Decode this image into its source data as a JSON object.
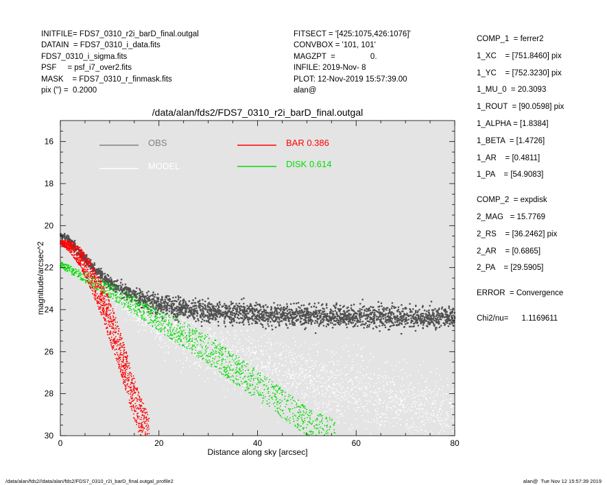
{
  "header_left": [
    "INITFILE= FDS7_0310_r2i_barD_final.outgal",
    "DATAIN  = FDS7_0310_i_data.fits",
    "FDS7_0310_i_sigma.fits",
    "PSF     = psf_i7_over2.fits",
    "MASK    = FDS7_0310_r_finmask.fits",
    "pix (\") =  0.2000"
  ],
  "header_mid": [
    "FITSECT = '[425:1075,426:1076]'",
    "CONVBOX = '101, 101'",
    "MAGZPT  =                0.",
    "INFILE: 2019-Nov- 8",
    "PLOT: 12-Nov-2019 15:57:39.00",
    "alan@"
  ],
  "params": {
    "comp1": [
      "COMP_1  = ferrer2",
      "1_XC    = [751.8460] pix",
      "1_YC    = [752.3230] pix",
      "1_MU_0  = 20.3093",
      "1_ROUT  = [90.0598] pix",
      "1_ALPHA = [1.8384]",
      "1_BETA  = [1.4726]",
      "1_AR    = [0.4811]",
      "1_PA    = [54.9083]"
    ],
    "comp2": [
      "COMP_2  = expdisk",
      "2_MAG   = 15.7769",
      "2_RS    = [36.2462] pix",
      "2_AR    = [0.6865]",
      "2_PA    = [29.5905]"
    ],
    "error": "ERROR  = Convergence",
    "chi2": "Chi2/nu=      1.1169611"
  },
  "footer_left": "/data/alan/fds2//data/alan/fds2/FDS7_0310_r2i_barD_final.outgal_profile2",
  "footer_right": "alan@  Tue Nov 12 15:57:39 2019",
  "chart_data": {
    "type": "scatter",
    "title": "/data/alan/fds2/FDS7_0310_r2i_barD_final.outgal",
    "xlabel": "Distance along sky [arcsec]",
    "ylabel": "magnitude/arcsec^2",
    "xlim": [
      0,
      80
    ],
    "ylim": [
      30,
      15
    ],
    "y_inverted": true,
    "xticks": [
      0,
      20,
      40,
      60,
      80
    ],
    "yticks": [
      16,
      18,
      20,
      22,
      24,
      26,
      28,
      30
    ],
    "background": "#e4e4e4",
    "legend": [
      {
        "label": "OBS",
        "color": "#808080",
        "placement": "top-left"
      },
      {
        "label": "MODEL",
        "color": "#ffffff",
        "placement": "top-left"
      },
      {
        "label": "BAR  0.386",
        "color": "#ff0000",
        "placement": "top-center"
      },
      {
        "label": "DISK  0.614",
        "color": "#00dd00",
        "placement": "top-center"
      }
    ],
    "series": [
      {
        "name": "OBS",
        "color": "#505050",
        "x": [
          0,
          1,
          2,
          3,
          4,
          5,
          6,
          8,
          10,
          12,
          14,
          16,
          18,
          20,
          22,
          25,
          30,
          40,
          50,
          60,
          70,
          80
        ],
        "y": [
          20.5,
          20.55,
          20.75,
          21.0,
          21.3,
          21.6,
          21.9,
          22.3,
          22.7,
          23.0,
          23.25,
          23.45,
          23.6,
          23.75,
          23.85,
          24.0,
          24.1,
          24.25,
          24.3,
          24.35,
          24.35,
          24.4
        ]
      },
      {
        "name": "MODEL",
        "color": "#ffffff",
        "x": [
          0,
          1,
          2,
          3,
          4,
          5,
          6,
          8,
          10,
          12,
          15,
          20,
          25,
          30,
          40,
          50,
          60,
          70,
          80
        ],
        "y": [
          20.6,
          20.7,
          20.9,
          21.15,
          21.45,
          21.75,
          22.05,
          22.5,
          22.95,
          23.35,
          23.9,
          24.7,
          25.3,
          25.8,
          26.6,
          27.3,
          27.9,
          28.5,
          29.0
        ]
      },
      {
        "name": "BAR  0.386",
        "color": "#ff0000",
        "x": [
          0,
          2,
          4,
          6,
          8,
          10,
          12,
          14,
          16,
          18
        ],
        "y": [
          20.8,
          21.0,
          21.5,
          22.3,
          23.3,
          24.5,
          25.9,
          27.5,
          29.0,
          30.0
        ]
      },
      {
        "name": "DISK  0.614",
        "color": "#00dd00",
        "x": [
          0,
          10,
          20,
          30,
          40,
          50,
          56
        ],
        "y": [
          21.85,
          23.1,
          24.5,
          25.9,
          27.6,
          29.3,
          30.0
        ]
      }
    ]
  }
}
